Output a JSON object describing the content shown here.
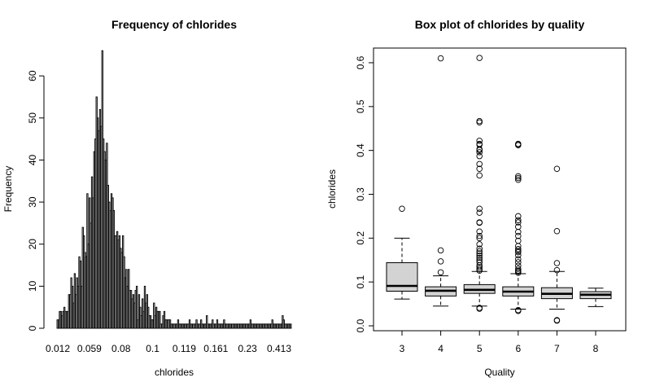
{
  "chart_data": [
    {
      "type": "bar",
      "title": "Frequency of chlorides",
      "xlabel": "chlorides",
      "ylabel": "Frequency",
      "ylim": [
        0,
        67
      ],
      "yticks": [
        "0",
        "10",
        "20",
        "30",
        "40",
        "50",
        "60"
      ],
      "yticks_values": [
        0,
        10,
        20,
        30,
        40,
        50,
        60
      ],
      "xtick_labels": [
        "0.012",
        "0.059",
        "0.08",
        "0.1",
        "0.119",
        "0.161",
        "0.23",
        "0.413"
      ],
      "values": [
        2,
        2,
        4,
        4,
        3,
        4,
        5,
        4,
        4,
        4,
        8,
        8,
        12,
        10,
        6,
        13,
        8,
        12,
        10,
        17,
        16,
        10,
        24,
        22,
        18,
        17,
        32,
        20,
        31,
        25,
        36,
        31,
        42,
        45,
        55,
        50,
        47,
        52,
        48,
        66,
        45,
        42,
        40,
        44,
        34,
        30,
        28,
        32,
        31,
        28,
        22,
        22,
        23,
        21,
        22,
        19,
        18,
        22,
        17,
        12,
        14,
        10,
        14,
        9,
        9,
        7,
        8,
        6,
        9,
        10,
        2,
        8,
        5,
        3,
        7,
        4,
        10,
        6,
        8,
        5,
        3,
        3,
        2,
        2,
        6,
        3,
        5,
        4,
        4,
        4,
        1,
        1,
        3,
        4,
        2,
        2,
        2,
        2,
        2,
        1,
        1,
        1,
        1,
        1,
        1,
        2,
        1,
        1,
        1,
        1,
        1,
        1,
        1,
        1,
        1,
        2,
        1,
        1,
        1,
        1,
        1,
        2,
        1,
        1,
        1,
        2,
        1,
        1,
        1,
        1,
        3,
        1,
        1,
        1,
        1,
        2,
        1,
        1,
        1,
        2,
        1,
        1,
        1,
        1,
        1,
        2,
        1,
        1,
        1,
        1,
        1,
        1,
        1,
        1,
        1,
        1,
        1,
        1,
        1,
        1,
        1,
        1,
        1,
        1,
        1,
        1,
        1,
        1,
        2,
        1,
        1,
        1,
        1,
        1,
        1,
        1,
        1,
        1,
        1,
        1,
        1,
        1,
        1,
        1,
        1,
        1,
        1,
        2,
        1,
        1,
        1,
        1,
        1,
        1,
        1,
        1,
        3,
        2,
        1,
        1,
        1,
        1,
        1,
        1
      ]
    },
    {
      "type": "box",
      "title": "Box plot of chlorides by quality",
      "xlabel": "Quality",
      "ylabel": "chlorides",
      "ylim": [
        -0.01,
        0.63
      ],
      "yticks": [
        "0.0",
        "0.1",
        "0.2",
        "0.3",
        "0.4",
        "0.5",
        "0.6"
      ],
      "yticks_values": [
        0,
        0.1,
        0.2,
        0.3,
        0.4,
        0.5,
        0.6
      ],
      "categories": [
        "3",
        "4",
        "5",
        "6",
        "7",
        "8"
      ],
      "boxes": [
        {
          "q1": 0.079,
          "median": 0.091,
          "q3": 0.144,
          "whisker_low": 0.061,
          "whisker_high": 0.2,
          "outliers": [
            0.267
          ]
        },
        {
          "q1": 0.068,
          "median": 0.08,
          "q3": 0.089,
          "whisker_low": 0.045,
          "whisker_high": 0.114,
          "outliers": [
            0.122,
            0.147,
            0.172,
            0.61
          ]
        },
        {
          "q1": 0.074,
          "median": 0.082,
          "q3": 0.094,
          "whisker_low": 0.045,
          "whisker_high": 0.124,
          "outliers": [
            0.039,
            0.041,
            0.126,
            0.13,
            0.134,
            0.138,
            0.145,
            0.15,
            0.155,
            0.16,
            0.165,
            0.17,
            0.176,
            0.186,
            0.2,
            0.205,
            0.215,
            0.235,
            0.236,
            0.258,
            0.267,
            0.343,
            0.358,
            0.369,
            0.387,
            0.396,
            0.401,
            0.403,
            0.413,
            0.415,
            0.422,
            0.464,
            0.467,
            0.611
          ]
        },
        {
          "q1": 0.068,
          "median": 0.078,
          "q3": 0.089,
          "whisker_low": 0.038,
          "whisker_high": 0.119,
          "outliers": [
            0.034,
            0.036,
            0.121,
            0.124,
            0.126,
            0.13,
            0.137,
            0.145,
            0.152,
            0.161,
            0.168,
            0.171,
            0.175,
            0.182,
            0.194,
            0.205,
            0.214,
            0.226,
            0.236,
            0.241,
            0.25,
            0.333,
            0.337,
            0.341,
            0.412,
            0.414,
            0.415
          ]
        },
        {
          "q1": 0.062,
          "median": 0.073,
          "q3": 0.087,
          "whisker_low": 0.038,
          "whisker_high": 0.124,
          "outliers": [
            0.012,
            0.013,
            0.127,
            0.143,
            0.216,
            0.358
          ]
        },
        {
          "q1": 0.062,
          "median": 0.071,
          "q3": 0.078,
          "whisker_low": 0.044,
          "whisker_high": 0.086,
          "outliers": []
        }
      ]
    }
  ]
}
